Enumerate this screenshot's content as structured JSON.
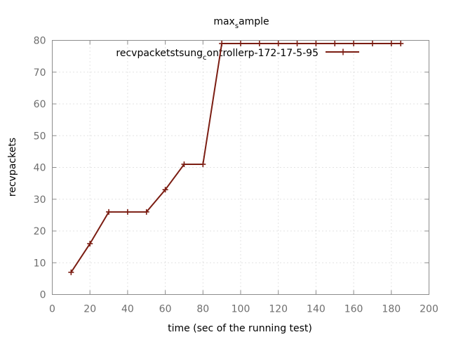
{
  "chart_data": {
    "type": "line",
    "title": {
      "main": "max",
      "sub": "s",
      "rest": "ample"
    },
    "xlabel": "time (sec of the running test)",
    "ylabel": "recvpackets",
    "xlim": [
      0,
      200
    ],
    "ylim": [
      0,
      80
    ],
    "xticks": [
      0,
      20,
      40,
      60,
      80,
      100,
      120,
      140,
      160,
      180,
      200
    ],
    "yticks": [
      0,
      10,
      20,
      30,
      40,
      50,
      60,
      70,
      80
    ],
    "grid": true,
    "legend_position": "top-right",
    "series": [
      {
        "label_parts": {
          "main": "recvpacketstsung",
          "sub": "c",
          "rest": "ontrollerp-172-17-5-95"
        },
        "color": "#7b1d12",
        "x": [
          10,
          20,
          30,
          40,
          50,
          60,
          70,
          80,
          90,
          100,
          110,
          120,
          130,
          140,
          150,
          160,
          170,
          180,
          185
        ],
        "y": [
          7,
          16,
          26,
          26,
          26,
          33,
          41,
          41,
          79,
          79,
          79,
          79,
          79,
          79,
          79,
          79,
          79,
          79,
          79
        ]
      }
    ]
  }
}
